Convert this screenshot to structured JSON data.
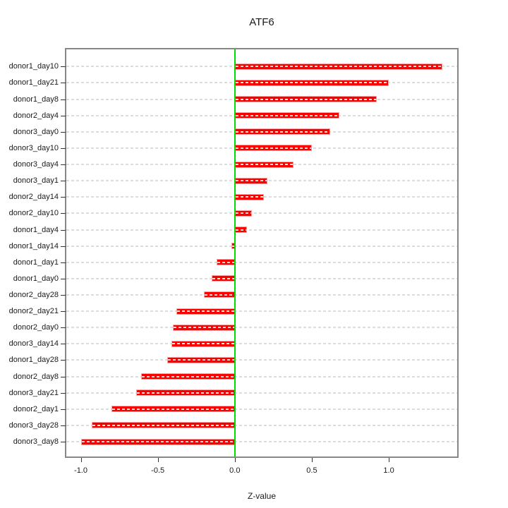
{
  "chart_data": {
    "type": "bar",
    "orientation": "horizontal",
    "title": "ATF6",
    "xlabel": "Z-value",
    "ylabel": "",
    "categories": [
      "donor1_day10",
      "donor1_day21",
      "donor1_day8",
      "donor2_day4",
      "donor3_day0",
      "donor3_day10",
      "donor3_day4",
      "donor3_day1",
      "donor2_day14",
      "donor2_day10",
      "donor1_day4",
      "donor1_day14",
      "donor1_day1",
      "donor1_day0",
      "donor2_day28",
      "donor2_day21",
      "donor2_day0",
      "donor3_day14",
      "donor1_day28",
      "donor2_day8",
      "donor3_day21",
      "donor2_day1",
      "donor3_day28",
      "donor3_day8"
    ],
    "values": [
      1.35,
      1.0,
      0.92,
      0.68,
      0.62,
      0.5,
      0.38,
      0.21,
      0.19,
      0.11,
      0.08,
      -0.02,
      -0.12,
      -0.15,
      -0.2,
      -0.38,
      -0.4,
      -0.41,
      -0.44,
      -0.61,
      -0.64,
      -0.8,
      -0.93,
      -1.0
    ],
    "xlim": [
      -1.094,
      1.444
    ],
    "xticks": [
      -1.0,
      -0.5,
      0.0,
      0.5,
      1.0
    ],
    "xtick_labels": [
      "-1.0",
      "-0.5",
      "0.0",
      "0.5",
      "1.0"
    ],
    "grid": "horizontal-dashed",
    "legend": "none",
    "colors": {
      "bar_fill": "#fc0000",
      "bar_border": "#ffa2a2",
      "zero_line": "#00dd00",
      "grid_line": "#dcdcdc",
      "box_border": "#878787",
      "tick": "#333333",
      "text": "#1a1a1a"
    }
  }
}
